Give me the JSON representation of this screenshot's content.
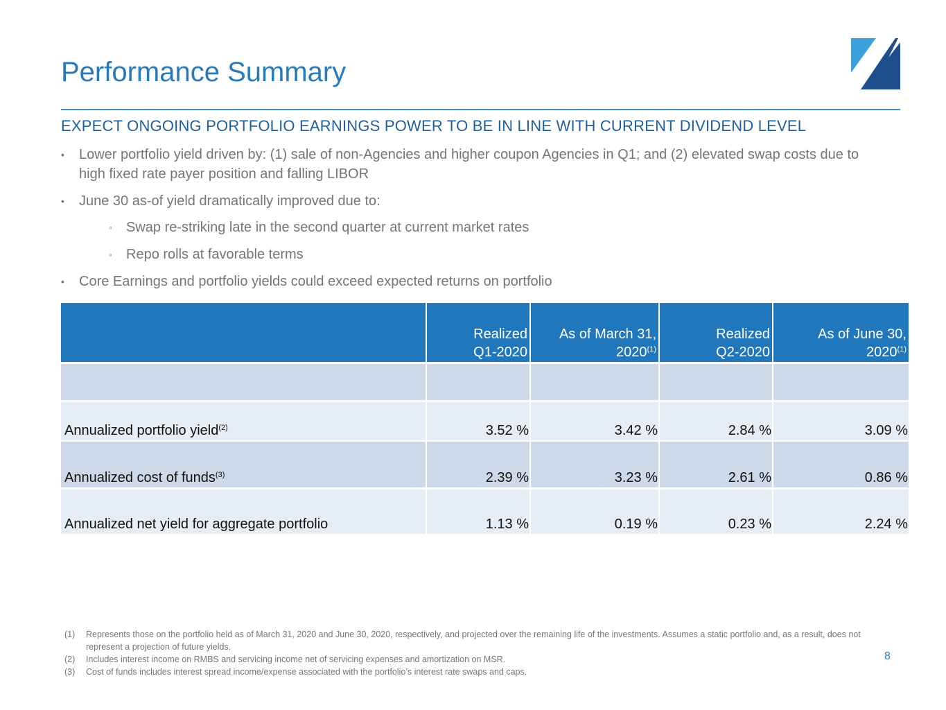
{
  "header": {
    "title": "Performance Summary",
    "subheading": "EXPECT ONGOING PORTFOLIO EARNINGS POWER TO BE IN LINE WITH CURRENT DIVIDEND LEVEL"
  },
  "colors": {
    "brand": "#2a7ab8",
    "header_fill": "#2077bb",
    "row_dark": "#cdd9e8",
    "row_light": "#e7edf4"
  },
  "bullets": {
    "b1": "Lower portfolio yield driven by: (1) sale of non-Agencies and higher coupon Agencies in Q1; and (2) elevated swap costs due to high fixed rate payer position and falling LIBOR",
    "b2": "June 30 as-of yield dramatically improved due to:",
    "s1": "Swap re-striking late in the second quarter at current market rates",
    "s2": "Repo rolls at favorable terms",
    "b3": "Core Earnings and portfolio yields could exceed expected returns on portfolio",
    "bullet_mark": "•",
    "sub_mark": "◦"
  },
  "table": {
    "columns": [
      {
        "line1": "Realized",
        "line2": "Q1-2020",
        "sup": ""
      },
      {
        "line1": "As of March 31,",
        "line2": "2020",
        "sup": "(1)"
      },
      {
        "line1": "Realized",
        "line2": "Q2-2020",
        "sup": ""
      },
      {
        "line1": "As of June 30,",
        "line2": "2020",
        "sup": "(1)"
      }
    ],
    "rows": [
      {
        "label": "Annualized portfolio yield",
        "sup": "(2)",
        "values": [
          "3.52 %",
          "3.42 %",
          "2.84 %",
          "3.09 %"
        ]
      },
      {
        "label": "Annualized cost of funds",
        "sup": "(3)",
        "values": [
          "2.39 %",
          "3.23 %",
          "2.61 %",
          "0.86 %"
        ]
      },
      {
        "label": "Annualized net yield for aggregate portfolio",
        "sup": "",
        "values": [
          "1.13 %",
          "0.19 %",
          "0.23 %",
          "2.24 %"
        ]
      }
    ]
  },
  "footnotes": [
    {
      "num": "(1)",
      "text": "Represents those on the portfolio held as of March 31, 2020 and June 30, 2020, respectively, and projected over the remaining life of the investments. Assumes a static portfolio and, as a result, does not represent a projection of future yields."
    },
    {
      "num": "(2)",
      "text": "Includes interest income on RMBS and servicing income net of servicing expenses and amortization on MSR."
    },
    {
      "num": "(3)",
      "text": "Cost of funds includes interest spread income/expense associated with the portfolio’s interest rate swaps and caps."
    }
  ],
  "page_number": "8"
}
